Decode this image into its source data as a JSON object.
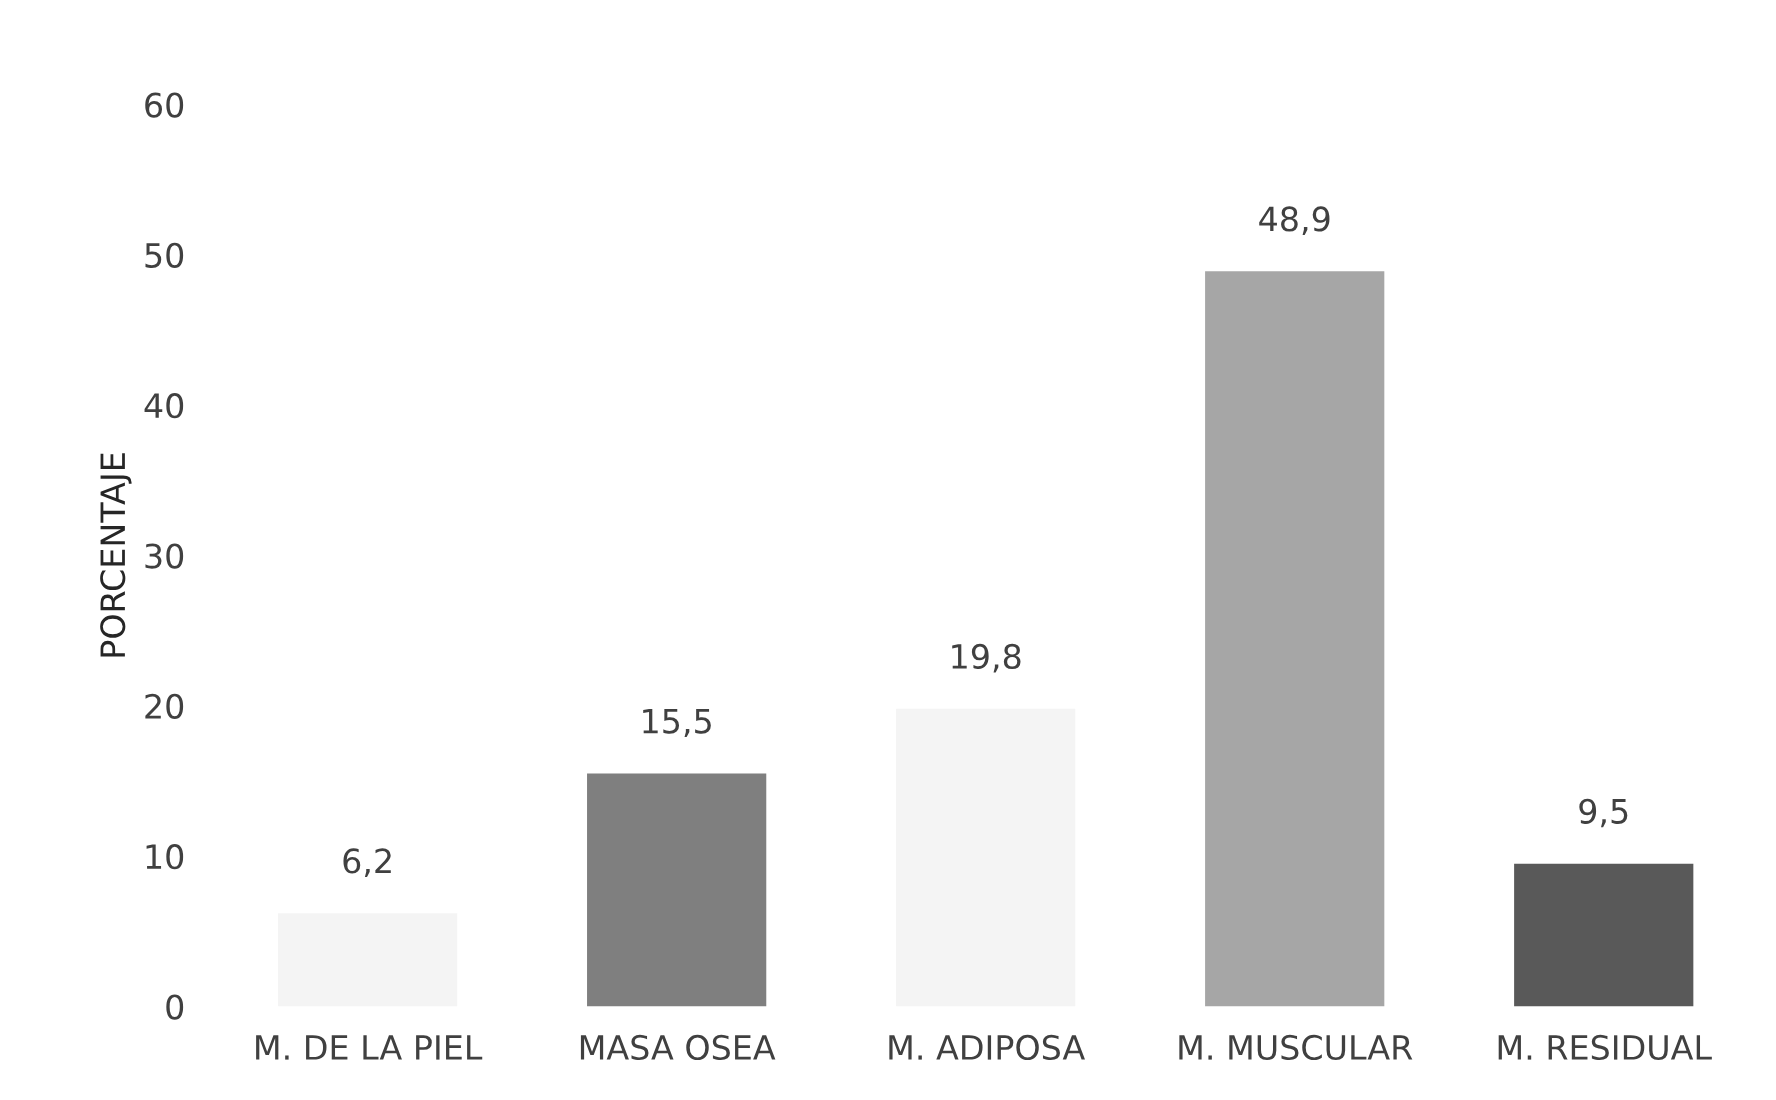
{
  "chart_data": {
    "type": "bar",
    "ylabel": "PORCENTAJE",
    "categories": [
      "M. DE LA PIEL",
      "MASA OSEA",
      "M. ADIPOSA",
      "M. MUSCULAR",
      "M. RESIDUAL"
    ],
    "values": [
      6.2,
      15.5,
      19.8,
      48.9,
      9.5
    ],
    "value_labels": [
      "6,2",
      "15,5",
      "19,8",
      "48,9",
      "9,5"
    ],
    "colors": [
      "#f4f4f4",
      "#7f7f7f",
      "#f4f4f4",
      "#a6a6a6",
      "#595959"
    ],
    "ylim": [
      0,
      60
    ],
    "yticks": [
      0,
      10,
      20,
      30,
      40,
      50,
      60
    ],
    "grid": false
  }
}
